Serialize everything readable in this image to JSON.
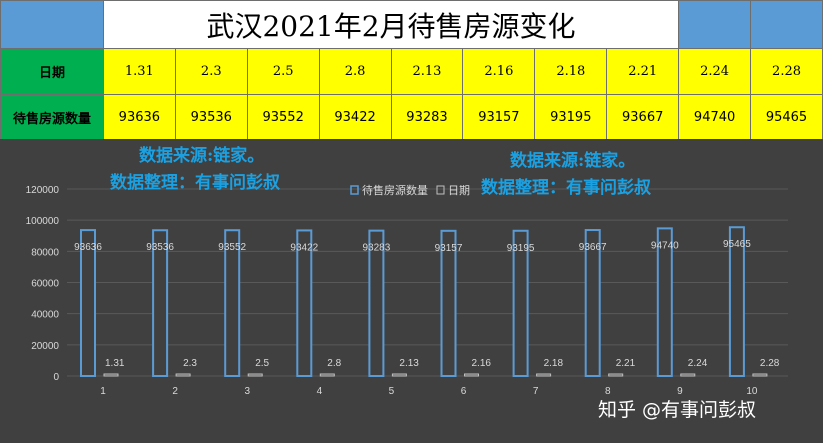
{
  "table": {
    "title": "武汉2021年2月待售房源变化",
    "date_label": "日期",
    "count_label": "待售房源数量",
    "dates": [
      "1.31",
      "2.3",
      "2.5",
      "2.8",
      "2.13",
      "2.16",
      "2.18",
      "2.21",
      "2.24",
      "2.28"
    ],
    "counts": [
      "93636",
      "93536",
      "93552",
      "93422",
      "93283",
      "93157",
      "93195",
      "93667",
      "94740",
      "95465"
    ]
  },
  "notes": {
    "source_left": "数据来源:链家。",
    "organizer_left": "数据整理：有事问彭叔",
    "source_right": "数据来源:链家。",
    "organizer_right": "数据整理：有事问彭叔"
  },
  "watermark": "知乎 @有事问彭叔",
  "chart_data": {
    "type": "bar",
    "categories": [
      "1",
      "2",
      "3",
      "4",
      "5",
      "6",
      "7",
      "8",
      "9",
      "10"
    ],
    "series": [
      {
        "name": "待售房源数量",
        "values": [
          93636,
          93536,
          93552,
          93422,
          93283,
          93157,
          93195,
          93667,
          94740,
          95465
        ],
        "labels": [
          "93636",
          "93536",
          "93552",
          "93422",
          "93283",
          "93157",
          "93195",
          "93667",
          "94740",
          "95465"
        ]
      },
      {
        "name": "日期",
        "values": [
          1.31,
          2.3,
          2.5,
          2.8,
          2.13,
          2.16,
          2.18,
          2.21,
          2.24,
          2.28
        ],
        "labels": [
          "1.31",
          "2.3",
          "2.5",
          "2.8",
          "2.13",
          "2.16",
          "2.18",
          "2.21",
          "2.24",
          "2.28"
        ]
      }
    ],
    "ylim": [
      0,
      120000
    ],
    "yticks": [
      "0",
      "20000",
      "40000",
      "60000",
      "80000",
      "100000",
      "120000"
    ],
    "grid": true,
    "legend": "top-center",
    "colors": {
      "bar_stroke": "#5b9bd5",
      "background": "#404040",
      "grid": "#595959",
      "text": "#d9d9d9",
      "note": "#1ba1e2",
      "header": "#5b9bd5",
      "label_fill": "#00b050",
      "cell_fill": "#ffff00"
    }
  }
}
